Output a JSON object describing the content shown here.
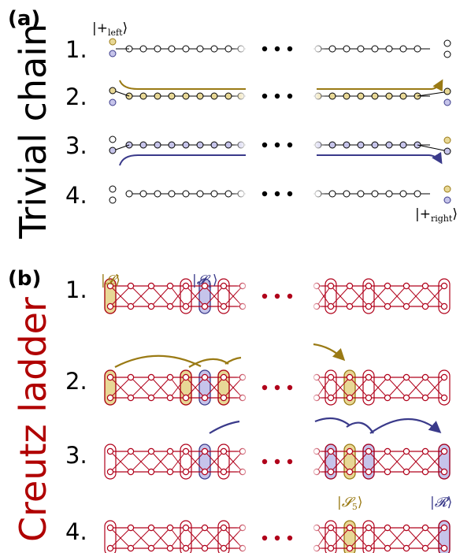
{
  "panel_a": {
    "label": "(a)",
    "title": "Trivial chain",
    "rows": [
      "1.",
      "2.",
      "3.",
      "4."
    ],
    "ket_left": {
      "open": "|+",
      "sub": "left",
      "close": "⟩"
    },
    "ket_right": {
      "open": "|+",
      "sub": "right",
      "close": "⟩"
    }
  },
  "panel_b": {
    "label": "(b)",
    "title": "Creutz ladder",
    "rows": [
      "1.",
      "2.",
      "3.",
      "4."
    ],
    "ket_L": {
      "open": "|",
      "sym": "𝓛",
      "close": "⟩"
    },
    "ket_S1": {
      "open": "|",
      "sym": "𝓢",
      "sub": "1",
      "close": "⟩"
    },
    "ket_S5": {
      "open": "|",
      "sym": "𝓢",
      "sub": "5",
      "close": "⟩"
    },
    "ket_R": {
      "open": "|",
      "sym": "𝓡",
      "close": "⟩"
    }
  },
  "colors": {
    "gold_fill": "#e8d896",
    "gold_stroke": "#9a7a14",
    "purple_fill": "#c6c4ea",
    "purple_stroke": "#3a3a8a",
    "red": "#b0001a",
    "red_text": "#b00000",
    "black": "#000000"
  }
}
